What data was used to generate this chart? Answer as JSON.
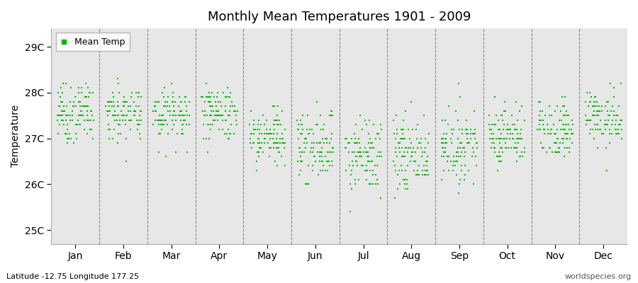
{
  "title": "Monthly Mean Temperatures 1901 - 2009",
  "ylabel": "Temperature",
  "xlabel_months": [
    "Jan",
    "Feb",
    "Mar",
    "Apr",
    "May",
    "Jun",
    "Jul",
    "Aug",
    "Sep",
    "Oct",
    "Nov",
    "Dec"
  ],
  "ytick_labels": [
    "25C",
    "26C",
    "27C",
    "28C",
    "29C"
  ],
  "ytick_values": [
    25,
    26,
    27,
    28,
    29
  ],
  "ylim": [
    24.7,
    29.4
  ],
  "marker_color": "#00bb00",
  "marker": "s",
  "marker_size": 2,
  "legend_label": "Mean Temp",
  "footnote_left": "Latitude -12.75 Longitude 177.25",
  "footnote_right": "worldspecies.org",
  "background_color": "#efefef",
  "hband_color": "#e0e0e0",
  "monthly_means": [
    27.55,
    27.55,
    27.55,
    27.55,
    27.05,
    26.85,
    26.6,
    26.65,
    26.85,
    27.05,
    27.2,
    27.45
  ],
  "monthly_stds": [
    0.3,
    0.3,
    0.3,
    0.3,
    0.33,
    0.38,
    0.4,
    0.4,
    0.35,
    0.32,
    0.3,
    0.3
  ],
  "n_years": 109,
  "seed": 7
}
